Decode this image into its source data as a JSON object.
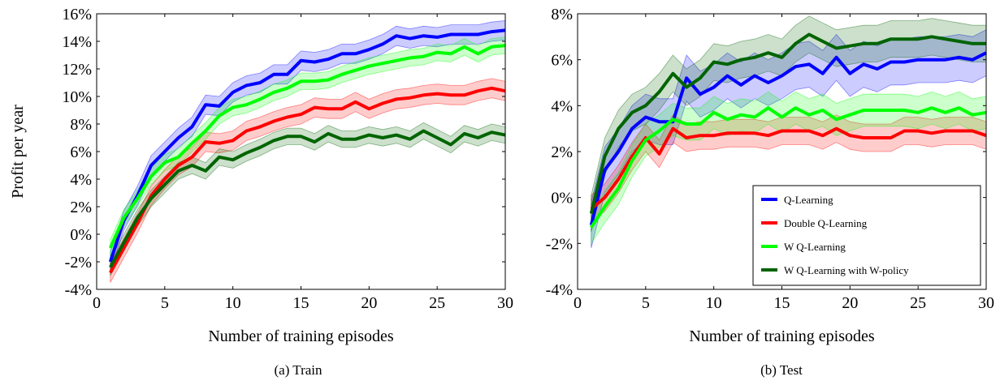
{
  "figure": {
    "panels": [
      "(a) Train",
      "(b) Test"
    ]
  },
  "chart_data": [
    {
      "type": "line",
      "caption": "(a) Train",
      "xlabel": "Number of training episodes",
      "ylabel": "Profit per year",
      "xlim": [
        0,
        30
      ],
      "ylim": [
        -4,
        16
      ],
      "xticks": [
        0,
        5,
        10,
        15,
        20,
        25,
        30
      ],
      "yticks": [
        -4,
        -2,
        0,
        2,
        4,
        6,
        8,
        10,
        12,
        14,
        16
      ],
      "ytick_labels": [
        "-4%",
        "-2%",
        "0%",
        "2%",
        "4%",
        "6%",
        "8%",
        "10%",
        "12%",
        "14%",
        "16%"
      ],
      "grid": false,
      "legend": null,
      "x": [
        1,
        2,
        3,
        4,
        5,
        6,
        7,
        8,
        9,
        10,
        11,
        12,
        13,
        14,
        15,
        16,
        17,
        18,
        19,
        20,
        21,
        22,
        23,
        24,
        25,
        26,
        27,
        28,
        29,
        30
      ],
      "series": [
        {
          "name": "Q-Learning",
          "color": "#0000ff",
          "values": [
            -2.0,
            1.0,
            2.8,
            5.0,
            6.0,
            7.0,
            7.8,
            9.4,
            9.3,
            10.3,
            10.8,
            11.0,
            11.6,
            11.6,
            12.6,
            12.5,
            12.7,
            13.1,
            13.1,
            13.4,
            13.8,
            14.4,
            14.2,
            14.4,
            14.3,
            14.5,
            14.5,
            14.5,
            14.7,
            14.8
          ],
          "band": 0.7
        },
        {
          "name": "Double Q-Learning",
          "color": "#ff0000",
          "values": [
            -2.8,
            -1.0,
            0.8,
            2.8,
            4.0,
            5.0,
            5.6,
            6.7,
            6.6,
            6.8,
            7.5,
            7.8,
            8.2,
            8.5,
            8.7,
            9.2,
            9.1,
            9.1,
            9.6,
            9.1,
            9.5,
            9.8,
            9.9,
            10.1,
            10.2,
            10.1,
            10.1,
            10.4,
            10.6,
            10.4
          ],
          "band": 0.7
        },
        {
          "name": "W Q-Learning",
          "color": "#00ff00",
          "values": [
            -1.0,
            1.2,
            2.6,
            4.2,
            5.2,
            5.6,
            6.6,
            7.5,
            8.6,
            9.2,
            9.4,
            9.8,
            10.3,
            10.6,
            11.1,
            11.1,
            11.2,
            11.6,
            11.9,
            12.2,
            12.4,
            12.6,
            12.8,
            12.9,
            13.2,
            13.1,
            13.6,
            13.1,
            13.6,
            13.7
          ],
          "band": 0.6
        },
        {
          "name": "W Q-Learning with W-policy",
          "color": "#006400",
          "values": [
            -2.4,
            -0.6,
            1.2,
            2.6,
            3.6,
            4.6,
            5.0,
            4.6,
            5.6,
            5.4,
            5.9,
            6.3,
            6.8,
            7.1,
            7.1,
            6.7,
            7.3,
            6.9,
            6.9,
            7.2,
            7.0,
            7.2,
            6.9,
            7.5,
            7.0,
            6.5,
            7.3,
            7.0,
            7.4,
            7.2
          ],
          "band": 0.6
        }
      ]
    },
    {
      "type": "line",
      "caption": "(b) Test",
      "xlabel": "Number of training episodes",
      "ylabel": "",
      "xlim": [
        0,
        30
      ],
      "ylim": [
        -4,
        8
      ],
      "xticks": [
        0,
        5,
        10,
        15,
        20,
        25,
        30
      ],
      "yticks": [
        -4,
        -2,
        0,
        2,
        4,
        6,
        8
      ],
      "ytick_labels": [
        "-4%",
        "-2%",
        "0%",
        "2%",
        "4%",
        "6%",
        "8%"
      ],
      "grid": false,
      "legend": "bottom-right",
      "x": [
        1,
        2,
        3,
        4,
        5,
        6,
        7,
        8,
        9,
        10,
        11,
        12,
        13,
        14,
        15,
        16,
        17,
        18,
        19,
        20,
        21,
        22,
        23,
        24,
        25,
        26,
        27,
        28,
        29,
        30
      ],
      "series": [
        {
          "name": "Q-Learning",
          "color": "#0000ff",
          "values": [
            -1.2,
            1.2,
            2.0,
            3.0,
            3.5,
            3.3,
            3.3,
            5.2,
            4.5,
            4.8,
            5.3,
            4.9,
            5.3,
            5.0,
            5.3,
            5.7,
            5.8,
            5.4,
            6.1,
            5.4,
            5.8,
            5.6,
            5.9,
            5.9,
            6.0,
            6.0,
            6.0,
            6.1,
            6.0,
            6.3
          ],
          "band": 1.0
        },
        {
          "name": "Double Q-Learning",
          "color": "#ff0000",
          "values": [
            -0.5,
            0.0,
            0.8,
            1.8,
            2.6,
            1.9,
            3.0,
            2.6,
            2.7,
            2.7,
            2.8,
            2.8,
            2.8,
            2.7,
            2.9,
            2.9,
            2.9,
            2.7,
            3.0,
            2.7,
            2.6,
            2.6,
            2.6,
            2.9,
            2.9,
            2.8,
            2.9,
            2.9,
            2.9,
            2.7
          ],
          "band": 0.6
        },
        {
          "name": "W Q-Learning",
          "color": "#00ff00",
          "values": [
            -1.3,
            -0.4,
            0.4,
            1.6,
            2.5,
            2.9,
            3.4,
            3.2,
            3.2,
            3.7,
            3.4,
            3.6,
            3.5,
            3.9,
            3.5,
            3.9,
            3.6,
            3.8,
            3.4,
            3.6,
            3.8,
            3.8,
            3.8,
            3.8,
            3.7,
            3.9,
            3.7,
            3.9,
            3.6,
            3.7
          ],
          "band": 0.7
        },
        {
          "name": "W Q-Learning with W-policy",
          "color": "#006400",
          "values": [
            -0.7,
            1.8,
            3.0,
            3.7,
            4.0,
            4.6,
            5.4,
            4.8,
            5.2,
            5.9,
            5.8,
            6.0,
            6.1,
            6.3,
            6.1,
            6.7,
            7.1,
            6.8,
            6.5,
            6.6,
            6.7,
            6.7,
            6.9,
            6.9,
            6.9,
            7.0,
            6.9,
            6.8,
            6.7,
            6.7
          ],
          "band": 0.8
        }
      ]
    }
  ]
}
